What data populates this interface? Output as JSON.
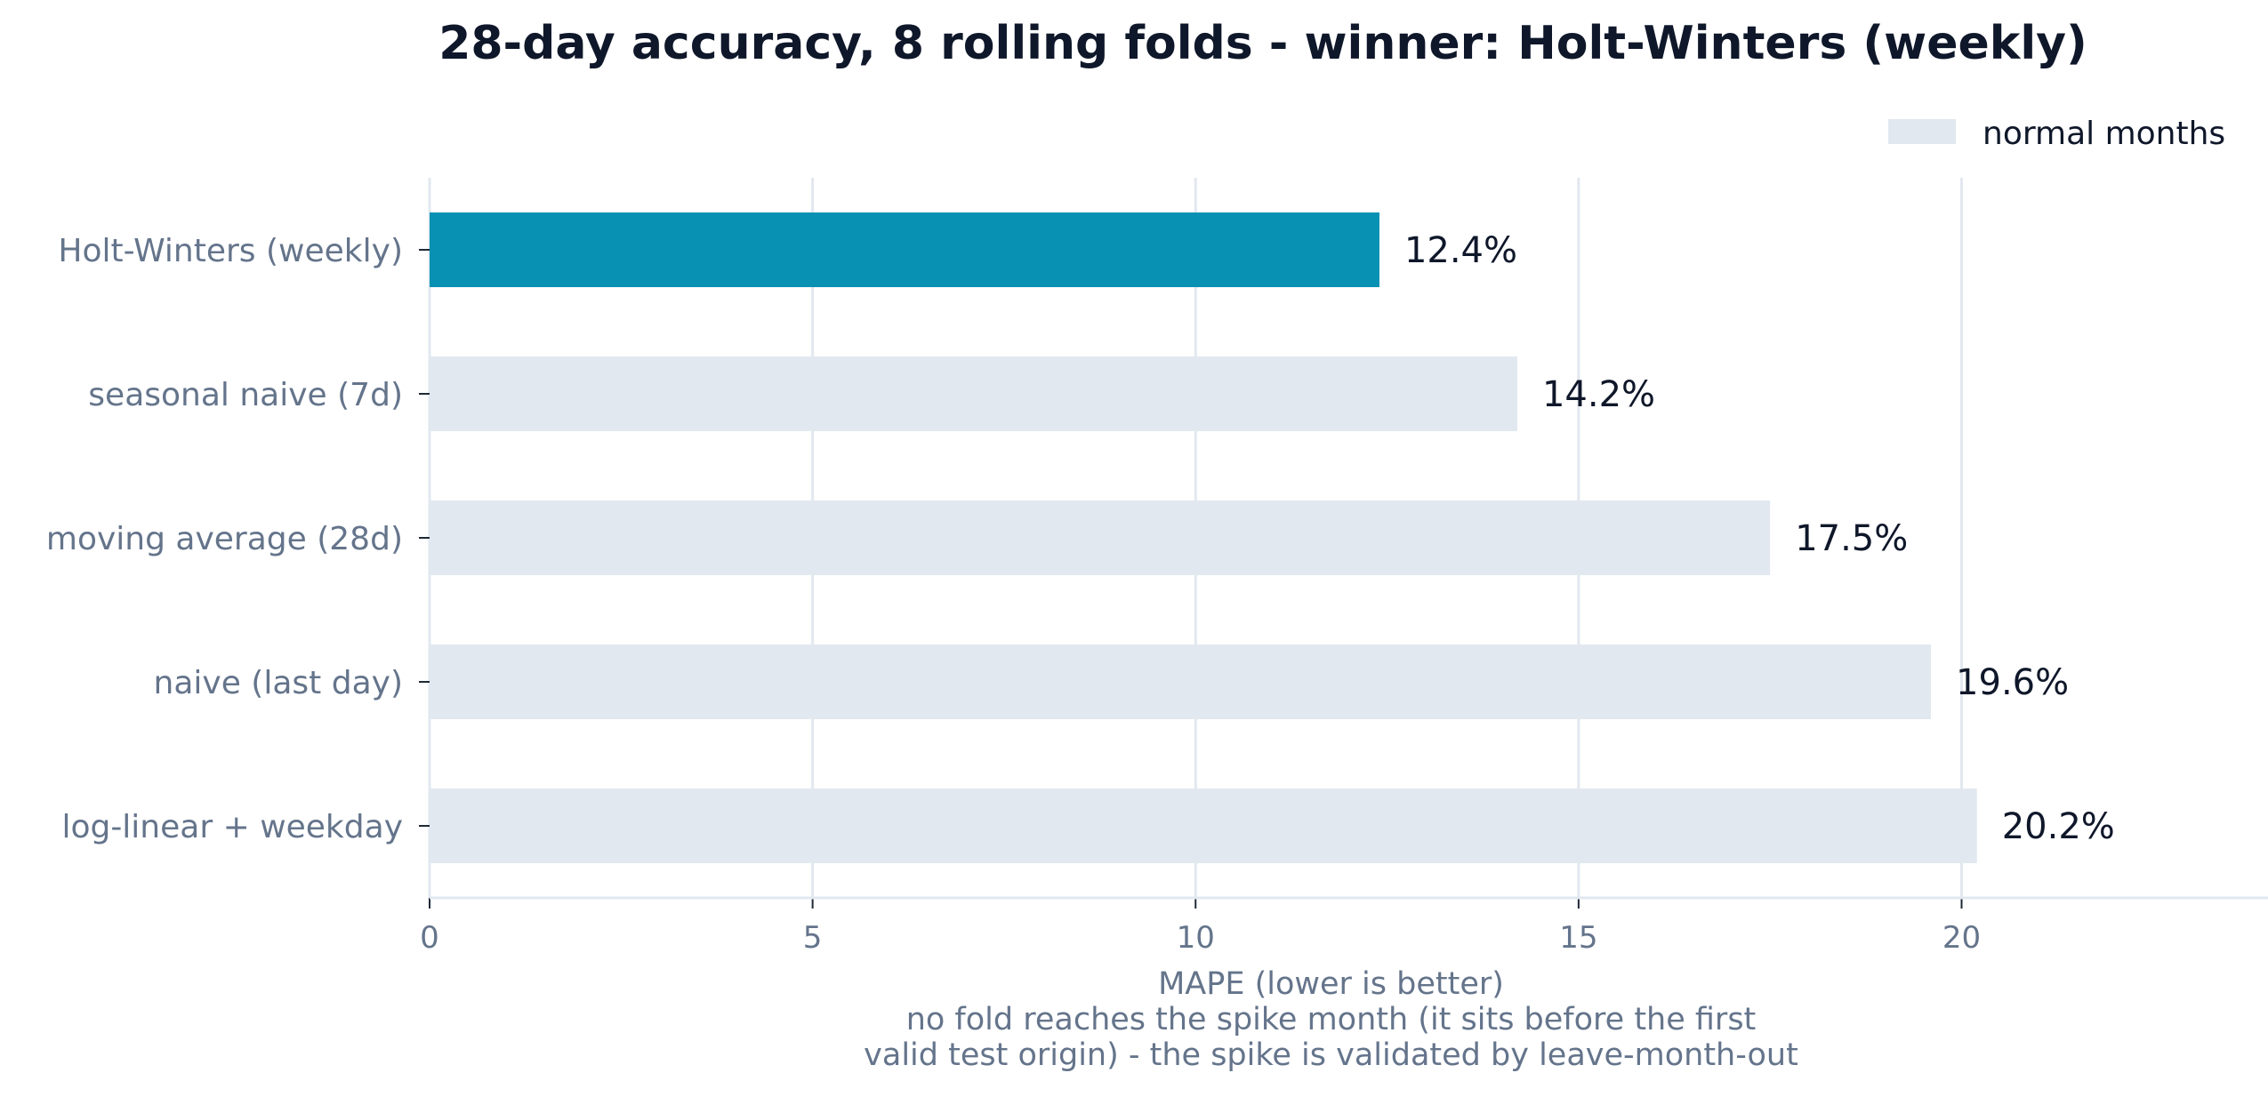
{
  "chart_data": {
    "type": "bar",
    "orientation": "horizontal",
    "title": "28-day accuracy, 8 rolling folds - winner: Holt-Winters (weekly)",
    "categories": [
      "Holt-Winters (weekly)",
      "seasonal naive (7d)",
      "moving average (28d)",
      "naive (last day)",
      "log-linear + weekday"
    ],
    "values": [
      12.4,
      14.2,
      17.5,
      19.6,
      20.2
    ],
    "value_labels": [
      "12.4%",
      "14.2%",
      "17.5%",
      "19.6%",
      "20.2%"
    ],
    "highlight_index": 0,
    "xlabel_lines": [
      "MAPE (lower is better)",
      "no fold reaches the spike month (it sits before the first",
      "valid test origin) - the spike is validated by leave-month-out"
    ],
    "ylabel": "",
    "xlim": [
      0,
      24
    ],
    "xticks": [
      0,
      5,
      10,
      15,
      20
    ],
    "grid": true,
    "legend": {
      "placement": "top-right",
      "entries": [
        {
          "label": "normal months",
          "color": "#e2e8f0"
        }
      ]
    },
    "colors": {
      "highlight": "#0891b2",
      "normal": "#e2e8f0",
      "grid": "#e2e8f0",
      "axis": "#e2e8f0"
    }
  }
}
